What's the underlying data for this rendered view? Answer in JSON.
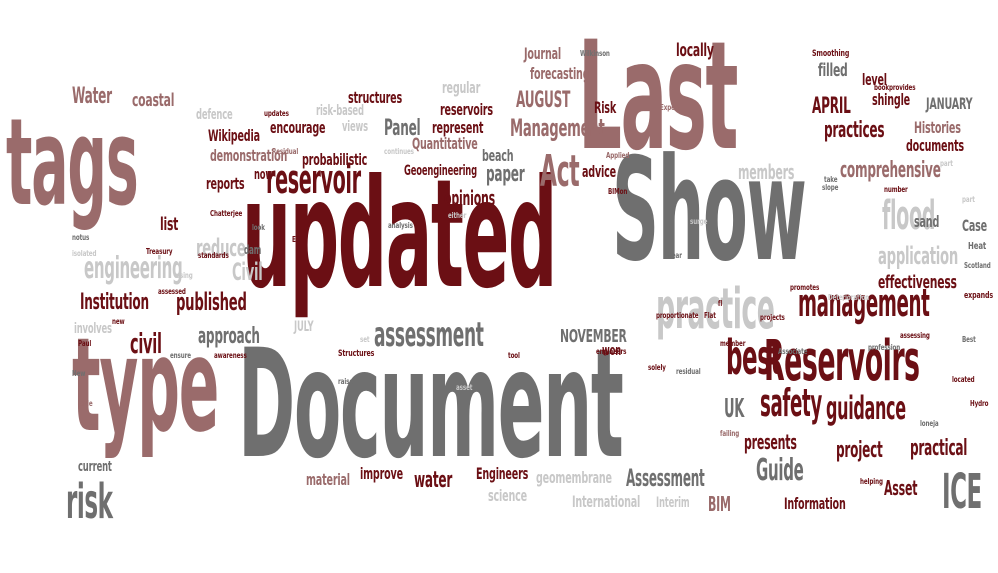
{
  "palette": {
    "dark": "#6b0f14",
    "rose": "#9a6b6b",
    "gray": "#6f6f6f",
    "light": "#c8c8c8"
  },
  "words": [
    "updated",
    "Document",
    "Show",
    "Last",
    "type",
    "tags",
    "Reservoirs",
    "practice",
    "reservoir",
    "assessment",
    "management",
    "Act",
    "safety",
    "best",
    "flood",
    "guidance",
    "engineering",
    "risk",
    "ICE",
    "comprehensive",
    "Guide",
    "Assessment",
    "Institution",
    "published",
    "civil",
    "approach",
    "NOVEMBER",
    "UK",
    "project",
    "practical",
    "presents",
    "Management",
    "AUGUST",
    "APRIL",
    "practices",
    "Panel",
    "water",
    "Water",
    "coastal",
    "Journal",
    "forecasting",
    "locally",
    "filled",
    "Histories",
    "documents",
    "shingle",
    "JANUARY",
    "level",
    "application",
    "members",
    "effectiveness",
    "sand",
    "Case",
    "Civil",
    "reduce",
    "list",
    "reports",
    "Wikipedia",
    "encourage",
    "probabilistic",
    "demonstration",
    "Quantitative",
    "represent",
    "Geoengineering",
    "paper",
    "opinions",
    "advice",
    "structures",
    "regular",
    "Risk",
    "reservoirs",
    "beach",
    "improve",
    "Engineers",
    "material",
    "geomembrane",
    "International",
    "science",
    "current",
    "Interim",
    "BIM",
    "Information",
    "Asset",
    "won",
    "JULY",
    "involves",
    "views",
    "risk-based",
    "defence",
    "now",
    "Heat",
    "Scotland",
    "expands",
    "Smoothing",
    "Wilkinson",
    "bookprovides",
    "Expert",
    "Treasury",
    "standards",
    "dam",
    "Structures",
    "Paul",
    "New",
    "side",
    "notus",
    "isolated",
    "Chatterjee",
    "updates",
    "Residual",
    "continues",
    "Applied",
    "BIMon",
    "surge",
    "Flat",
    "projects",
    "promotes",
    "Deterioration",
    "proportionate",
    "profession",
    "assessing",
    "engineers",
    "solely",
    "tool",
    "member",
    "Associate",
    "located",
    "Hydro",
    "failing",
    "helping",
    "residual",
    "near",
    "slope",
    "take",
    "number",
    "part",
    "Best",
    "analysis",
    "look",
    "EU",
    "ensure",
    "awareness",
    "raise",
    "asset",
    "set",
    "using",
    "new",
    "assessed",
    "either",
    "fl",
    "loneja",
    "part"
  ]
}
